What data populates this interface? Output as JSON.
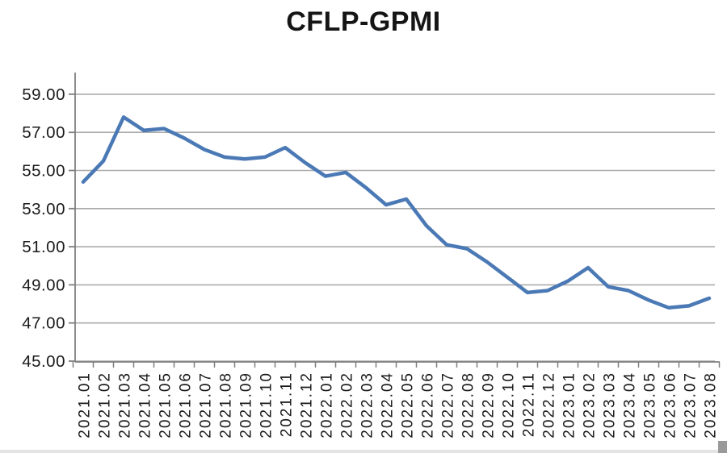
{
  "chart_data": {
    "type": "line",
    "title": "CFLP-GPMI",
    "categories": [
      "2021.01",
      "2021.02",
      "2021.03",
      "2021.04",
      "2021.05",
      "2021.06",
      "2021.07",
      "2021.08",
      "2021.09",
      "2021.10",
      "2021.11",
      "2021.12",
      "2022.01",
      "2022.02",
      "2022.03",
      "2022.04",
      "2022.05",
      "2022.06",
      "2022.07",
      "2022.08",
      "2022.09",
      "2022.10",
      "2022.11",
      "2022.12",
      "2023.01",
      "2023.02",
      "2023.03",
      "2023.04",
      "2023.05",
      "2023.06",
      "2023.07",
      "2023.08"
    ],
    "values": [
      54.4,
      55.5,
      57.8,
      57.1,
      57.2,
      56.7,
      56.1,
      55.7,
      55.6,
      55.7,
      56.2,
      55.4,
      54.7,
      54.9,
      54.1,
      53.2,
      53.5,
      52.1,
      51.1,
      50.9,
      50.2,
      49.4,
      48.6,
      48.7,
      49.2,
      49.9,
      48.9,
      48.7,
      48.2,
      47.8,
      47.9,
      48.3
    ],
    "ytick_labels": [
      "45.00",
      "47.00",
      "49.00",
      "51.00",
      "53.00",
      "55.00",
      "57.00",
      "59.00"
    ],
    "ylim": [
      45,
      60
    ],
    "xlabel": "",
    "ylabel": "",
    "grid": true,
    "legend_position": "none",
    "series_name": "CFLP-GPMI"
  },
  "colors": {
    "line": "#4a79b5",
    "gridline": "#ababab",
    "axis": "#7f7f7f",
    "text": "#1a1a1a",
    "background": "#ffffff"
  }
}
